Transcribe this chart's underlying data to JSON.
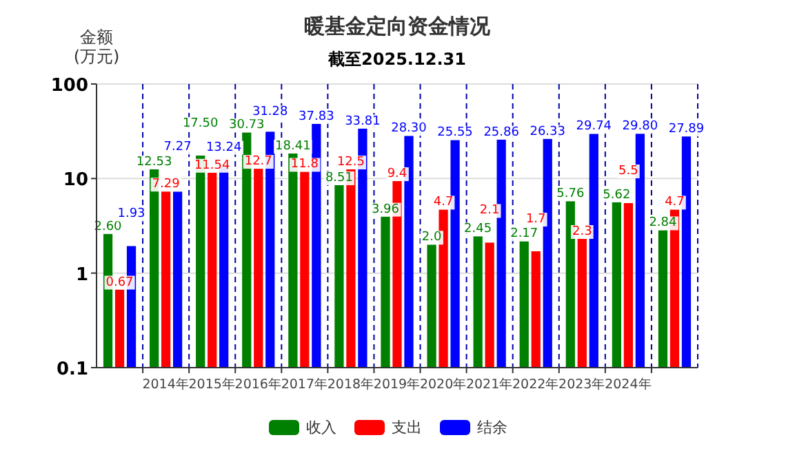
{
  "chart_data": {
    "type": "bar",
    "title": "暖基金定向资金情况",
    "subtitle": "截至2025.12.31",
    "ylabel": "金额\n(万元)",
    "categories": [
      null,
      "2014年",
      "2015年",
      "2016年",
      "2017年",
      "2018年",
      "2019年",
      "2020年",
      "2021年",
      "2022年",
      "2023年",
      "2024年",
      null
    ],
    "series": [
      {
        "name": "收入",
        "color": "#008000",
        "values": [
          2.6,
          12.53,
          17.5,
          30.73,
          18.41,
          8.51,
          3.96,
          2.0,
          2.45,
          2.17,
          5.76,
          5.62,
          2.84
        ],
        "value_labels": [
          "2.60",
          "12.53",
          "17.50",
          "30.73",
          "18.41",
          "8.51",
          "3.96",
          "2.0",
          "2.45",
          "2.17",
          "5.76",
          "5.62",
          "2.84"
        ]
      },
      {
        "name": "支出",
        "color": "#ff0000",
        "values": [
          0.67,
          7.29,
          11.54,
          12.7,
          11.8,
          12.5,
          9.4,
          4.7,
          2.1,
          1.7,
          2.3,
          5.5,
          4.7
        ],
        "value_labels": [
          "0.67",
          "7.29",
          "11.54",
          "12.7",
          "11.8",
          "12.5",
          "9.4",
          "4.7",
          "2.1",
          "1.7",
          "2.3",
          "5.5",
          "4.7"
        ]
      },
      {
        "name": "结余",
        "color": "#0000ff",
        "values": [
          1.93,
          7.27,
          13.24,
          31.28,
          37.83,
          33.81,
          28.3,
          25.55,
          25.86,
          26.33,
          29.74,
          29.8,
          27.89
        ],
        "value_labels": [
          "1.93",
          "7.27",
          "13.24",
          "31.28",
          "37.83",
          "33.81",
          "28.30",
          "25.55",
          "25.86",
          "26.33",
          "29.74",
          "29.80",
          "27.89"
        ]
      }
    ],
    "log": true,
    "ylim": [
      0.1,
      100
    ],
    "yticks": [
      0.1,
      1,
      10,
      100
    ],
    "grid": true,
    "legend": "bottom"
  }
}
